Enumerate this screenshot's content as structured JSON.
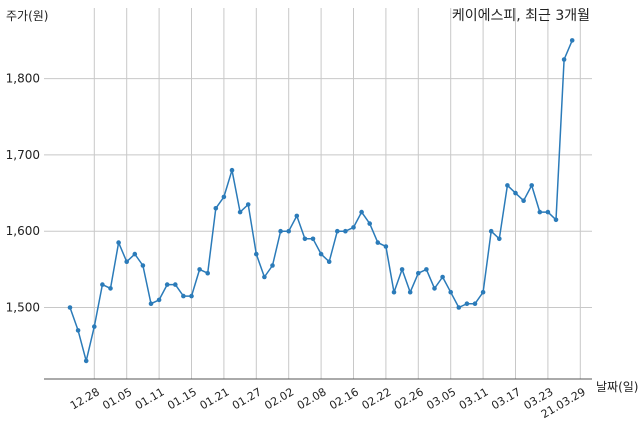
{
  "chart_data": {
    "type": "line",
    "title": "케이에스피, 최근 3개월",
    "ylabel": "주가(원)",
    "xlabel": "날짜(일)",
    "ylim": [
      1400,
      1850
    ],
    "yticks": [
      1500,
      1600,
      1700,
      1800
    ],
    "ytick_labels": [
      "1,500",
      "1,600",
      "1,700",
      "1,800"
    ],
    "grid": true,
    "xtick_labels": [
      "12.28",
      "01.05",
      "01.11",
      "01.15",
      "01.21",
      "01.27",
      "02.02",
      "02.08",
      "02.16",
      "02.22",
      "02.26",
      "03.05",
      "03.11",
      "03.17",
      "03.23",
      "21.03.29"
    ],
    "xtick_indices": [
      3,
      7,
      11,
      15,
      19,
      23,
      27,
      31,
      35,
      39,
      43,
      47,
      51,
      55,
      59,
      63
    ],
    "series": [
      {
        "color": "#2b7bb9",
        "values": [
          1500,
          1470,
          1430,
          1475,
          1530,
          1525,
          1585,
          1560,
          1570,
          1555,
          1505,
          1510,
          1530,
          1530,
          1515,
          1515,
          1550,
          1545,
          1630,
          1645,
          1680,
          1625,
          1635,
          1570,
          1540,
          1555,
          1600,
          1600,
          1620,
          1590,
          1590,
          1570,
          1560,
          1600,
          1600,
          1605,
          1625,
          1610,
          1585,
          1580,
          1520,
          1550,
          1520,
          1545,
          1550,
          1525,
          1540,
          1520,
          1500,
          1505,
          1505,
          1520,
          1600,
          1590,
          1660,
          1650,
          1640,
          1660,
          1625,
          1625,
          1615,
          1825,
          1850
        ]
      }
    ]
  }
}
